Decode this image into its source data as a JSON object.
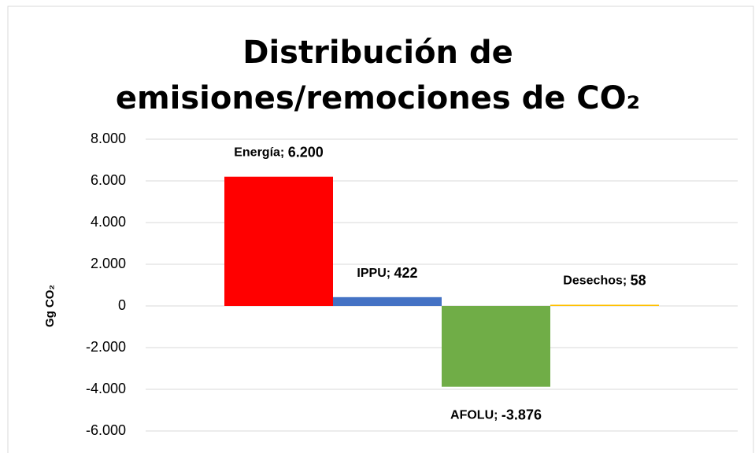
{
  "chart_data": {
    "type": "bar",
    "title": "Distribución de emisiones/remociones de CO₂",
    "y_label": "Gg CO₂",
    "categories": [
      "Energía",
      "IPPU",
      "AFOLU",
      "Desechos"
    ],
    "values": [
      6200,
      422,
      -3876,
      58
    ],
    "value_labels": [
      "6.200",
      "422",
      "-3.876",
      "58"
    ],
    "colors": [
      "#ff0000",
      "#4472c4",
      "#70ad47",
      "#ffc000"
    ],
    "ylim": [
      -6000,
      8000
    ],
    "yticks": [
      {
        "value": -6000,
        "label": "-6.000"
      },
      {
        "value": -4000,
        "label": "-4.000"
      },
      {
        "value": -2000,
        "label": "-2.000"
      },
      0,
      {
        "value": 2000,
        "label": "2.000"
      },
      {
        "value": 4000,
        "label": "4.000"
      },
      {
        "value": 6000,
        "label": "6.000"
      },
      {
        "value": 8000,
        "label": "8.000"
      }
    ],
    "grid": true
  }
}
